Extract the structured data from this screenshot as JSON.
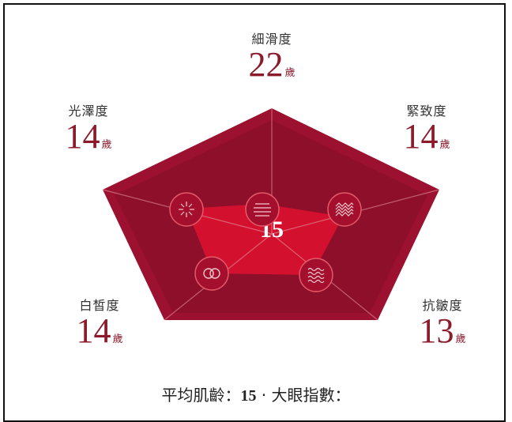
{
  "radar": {
    "center_value": "15",
    "colors": {
      "outer": "#9c1130",
      "inner": "#d3112e",
      "line": "#e8a0a8"
    },
    "metrics": [
      {
        "id": "smoothness",
        "label": "細滑度",
        "value": "22",
        "unit": "歲",
        "icon": "lines-icon"
      },
      {
        "id": "firmness",
        "label": "緊致度",
        "value": "14",
        "unit": "歲",
        "icon": "mesh-icon"
      },
      {
        "id": "anti-wrinkle",
        "label": "抗皺度",
        "value": "13",
        "unit": "歲",
        "icon": "waves-icon"
      },
      {
        "id": "whitening",
        "label": "白皙度",
        "value": "14",
        "unit": "歲",
        "icon": "rings-icon"
      },
      {
        "id": "radiance",
        "label": "光澤度",
        "value": "14",
        "unit": "歲",
        "icon": "sparkle-icon"
      }
    ]
  },
  "footer": {
    "avg_label": "平均肌齡：",
    "avg_value": "15",
    "separator": " · ",
    "eye_label": "大眼指數："
  }
}
